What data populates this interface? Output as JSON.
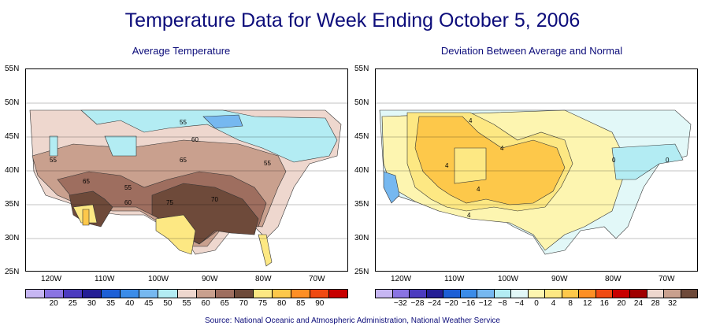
{
  "title": "Temperature Data for Week Ending October 5, 2006",
  "source": "Source:  National Oceanic and Atmospheric Administration, National Weather Service",
  "left_panel": {
    "subtitle": "Average Temperature",
    "lat_ticks": [
      "55N",
      "50N",
      "45N",
      "40N",
      "35N",
      "30N",
      "25N"
    ],
    "lon_ticks": [
      "120W",
      "110W",
      "100W",
      "90W",
      "80W",
      "70W"
    ],
    "contour_labels": [
      "55",
      "55",
      "60",
      "65",
      "65",
      "55",
      "60",
      "75",
      "70",
      "55"
    ],
    "legend_colors": [
      "#c6b6f2",
      "#8a74e2",
      "#4b3bbf",
      "#241e95",
      "#1c5fd6",
      "#3b8ce8",
      "#76b8f0",
      "#b3ecf3",
      "#eed7ce",
      "#c9a08e",
      "#9e6e5f",
      "#6e4a3a",
      "#fde883",
      "#fdc84a",
      "#fd8f25",
      "#f04a12",
      "#c80000"
    ],
    "legend_labels": [
      "20",
      "25",
      "30",
      "35",
      "40",
      "45",
      "50",
      "55",
      "60",
      "65",
      "70",
      "75",
      "80",
      "85",
      "90"
    ]
  },
  "right_panel": {
    "subtitle": "Deviation Between Average and Normal",
    "lat_ticks": [
      "55N",
      "50N",
      "45N",
      "40N",
      "35N",
      "30N",
      "25N"
    ],
    "lon_ticks": [
      "120W",
      "110W",
      "100W",
      "90W",
      "80W",
      "70W"
    ],
    "contour_labels": [
      "4",
      "4",
      "4",
      "4",
      "4",
      "0",
      "0"
    ],
    "legend_colors": [
      "#c6b6f2",
      "#8a74e2",
      "#4b3bbf",
      "#241e95",
      "#1c5fd6",
      "#3b8ce8",
      "#76b8f0",
      "#b3ecf3",
      "#e2f8f8",
      "#fdf5b0",
      "#fde883",
      "#fdc84a",
      "#fd8f25",
      "#f04a12",
      "#c80000",
      "#a00000",
      "#eed7ce",
      "#c9a08e",
      "#6e4a3a"
    ],
    "legend_labels": [
      "−32",
      "−28",
      "−24",
      "−20",
      "−16",
      "−12",
      "−8",
      "−4",
      "0",
      "4",
      "8",
      "12",
      "16",
      "20",
      "24",
      "28",
      "32"
    ]
  }
}
